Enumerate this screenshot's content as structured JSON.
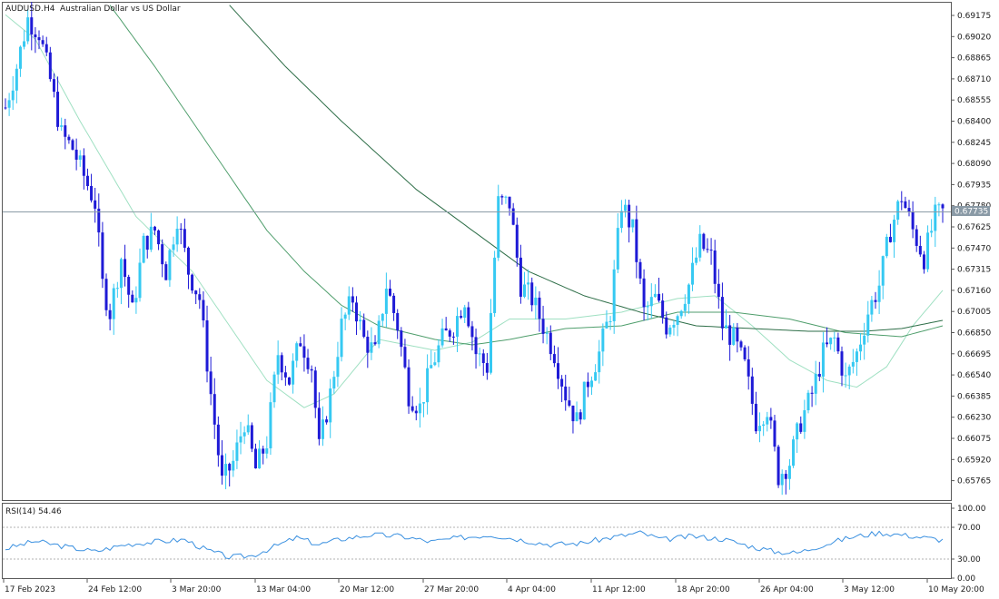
{
  "window": {
    "symbol": "AUDUSD.",
    "timeframe": "H4",
    "description": "Australian Dollar vs US Dollar"
  },
  "colors": {
    "background": "#ffffff",
    "grid_border": "#5a5a5a",
    "bull_candle": "#36c9f2",
    "bear_candle": "#1e1ad6",
    "ma_fast": "#9fe0c2",
    "ma_mid": "#4f9e6c",
    "ma_slow": "#2e6e48",
    "bid_line": "#8a9aa6",
    "price_tag_bg": "#8a9aa6",
    "rsi_line": "#3a90e0",
    "rsi_level_line": "#b0b0b0"
  },
  "price_axis": {
    "labels": [
      "0.69175",
      "0.69020",
      "0.68865",
      "0.68710",
      "0.68555",
      "0.68400",
      "0.68245",
      "0.68090",
      "0.67935",
      "0.67780",
      "0.67625",
      "0.67470",
      "0.67315",
      "0.67160",
      "0.67005",
      "0.66850",
      "0.66695",
      "0.66540",
      "0.66385",
      "0.66230",
      "0.66075",
      "0.65920",
      "0.65765"
    ],
    "current_price": "0.67735"
  },
  "time_axis": {
    "labels": [
      "17 Feb 2023",
      "24 Feb 12:00",
      "3 Mar 20:00",
      "13 Mar 04:00",
      "20 Mar 12:00",
      "27 Mar 20:00",
      "4 Apr 04:00",
      "11 Apr 12:00",
      "18 Apr 20:00",
      "26 Apr 04:00",
      "3 May 12:00",
      "10 May 20:00"
    ]
  },
  "rsi": {
    "label": "RSI(14) 54.46",
    "levels": [
      "100.00",
      "70.00",
      "30.00",
      "0.00"
    ]
  },
  "chart_data": {
    "type": "candlestick",
    "symbol": "AUDUSD.",
    "timeframe": "H4",
    "ylim": [
      0.6567,
      0.6925
    ],
    "current_price": 0.67735,
    "x_range": [
      "17 Feb 2023",
      "10 May 2023"
    ],
    "anchors": [
      [
        0,
        0.685
      ],
      [
        3,
        0.688
      ],
      [
        6,
        0.6915
      ],
      [
        9,
        0.6905
      ],
      [
        12,
        0.687
      ],
      [
        15,
        0.683
      ],
      [
        18,
        0.682
      ],
      [
        21,
        0.68
      ],
      [
        24,
        0.678
      ],
      [
        26,
        0.672
      ],
      [
        28,
        0.67
      ],
      [
        31,
        0.674
      ],
      [
        34,
        0.67
      ],
      [
        37,
        0.675
      ],
      [
        40,
        0.676
      ],
      [
        43,
        0.673
      ],
      [
        46,
        0.677
      ],
      [
        49,
        0.673
      ],
      [
        52,
        0.671
      ],
      [
        55,
        0.664
      ],
      [
        58,
        0.6575
      ],
      [
        61,
        0.659
      ],
      [
        64,
        0.662
      ],
      [
        67,
        0.6585
      ],
      [
        70,
        0.6605
      ],
      [
        73,
        0.667
      ],
      [
        76,
        0.665
      ],
      [
        79,
        0.668
      ],
      [
        82,
        0.666
      ],
      [
        84,
        0.66
      ],
      [
        87,
        0.664
      ],
      [
        90,
        0.669
      ],
      [
        93,
        0.671
      ],
      [
        96,
        0.668
      ],
      [
        99,
        0.667
      ],
      [
        102,
        0.672
      ],
      [
        105,
        0.669
      ],
      [
        108,
        0.664
      ],
      [
        111,
        0.663
      ],
      [
        114,
        0.666
      ],
      [
        117,
        0.668
      ],
      [
        120,
        0.669
      ],
      [
        123,
        0.671
      ],
      [
        126,
        0.667
      ],
      [
        129,
        0.666
      ],
      [
        132,
        0.678
      ],
      [
        135,
        0.678
      ],
      [
        138,
        0.672
      ],
      [
        141,
        0.671
      ],
      [
        144,
        0.669
      ],
      [
        147,
        0.667
      ],
      [
        150,
        0.664
      ],
      [
        153,
        0.662
      ],
      [
        156,
        0.665
      ],
      [
        159,
        0.667
      ],
      [
        162,
        0.67
      ],
      [
        165,
        0.678
      ],
      [
        168,
        0.676
      ],
      [
        171,
        0.67
      ],
      [
        174,
        0.671
      ],
      [
        177,
        0.669
      ],
      [
        180,
        0.67
      ],
      [
        183,
        0.672
      ],
      [
        186,
        0.675
      ],
      [
        189,
        0.674
      ],
      [
        192,
        0.669
      ],
      [
        195,
        0.668
      ],
      [
        198,
        0.666
      ],
      [
        201,
        0.662
      ],
      [
        204,
        0.663
      ],
      [
        207,
        0.658
      ],
      [
        210,
        0.659
      ],
      [
        213,
        0.662
      ],
      [
        216,
        0.664
      ],
      [
        219,
        0.667
      ],
      [
        222,
        0.668
      ],
      [
        225,
        0.665
      ],
      [
        228,
        0.667
      ],
      [
        231,
        0.67
      ],
      [
        234,
        0.672
      ],
      [
        237,
        0.676
      ],
      [
        240,
        0.6785
      ],
      [
        243,
        0.676
      ],
      [
        246,
        0.674
      ],
      [
        249,
        0.677
      ],
      [
        251,
        0.6773
      ]
    ],
    "ma_series": [
      {
        "anchors": [
          [
            0,
            0.6918
          ],
          [
            8,
            0.69
          ],
          [
            20,
            0.684
          ],
          [
            35,
            0.677
          ],
          [
            50,
            0.673
          ],
          [
            60,
            0.669
          ],
          [
            70,
            0.665
          ],
          [
            80,
            0.663
          ],
          [
            88,
            0.664
          ],
          [
            100,
            0.668
          ],
          [
            115,
            0.6672
          ],
          [
            125,
            0.6678
          ],
          [
            135,
            0.6695
          ],
          [
            150,
            0.6695
          ],
          [
            165,
            0.67
          ],
          [
            180,
            0.671
          ],
          [
            190,
            0.6712
          ],
          [
            200,
            0.669
          ],
          [
            210,
            0.6665
          ],
          [
            220,
            0.665
          ],
          [
            228,
            0.6645
          ],
          [
            236,
            0.666
          ],
          [
            243,
            0.669
          ],
          [
            251,
            0.6716
          ]
        ]
      },
      {
        "anchors": [
          [
            28,
            0.6925
          ],
          [
            40,
            0.688
          ],
          [
            55,
            0.682
          ],
          [
            70,
            0.676
          ],
          [
            80,
            0.673
          ],
          [
            90,
            0.6705
          ],
          [
            100,
            0.669
          ],
          [
            115,
            0.668
          ],
          [
            125,
            0.6676
          ],
          [
            135,
            0.668
          ],
          [
            150,
            0.6688
          ],
          [
            165,
            0.669
          ],
          [
            180,
            0.67
          ],
          [
            195,
            0.67
          ],
          [
            210,
            0.6695
          ],
          [
            225,
            0.6685
          ],
          [
            240,
            0.6682
          ],
          [
            251,
            0.669
          ]
        ]
      },
      {
        "anchors": [
          [
            60,
            0.6925
          ],
          [
            75,
            0.688
          ],
          [
            90,
            0.684
          ],
          [
            110,
            0.679
          ],
          [
            125,
            0.676
          ],
          [
            140,
            0.673
          ],
          [
            155,
            0.6712
          ],
          [
            170,
            0.67
          ],
          [
            185,
            0.669
          ],
          [
            200,
            0.6688
          ],
          [
            215,
            0.6686
          ],
          [
            230,
            0.6686
          ],
          [
            240,
            0.6688
          ],
          [
            251,
            0.6694
          ]
        ]
      }
    ],
    "rsi_14": {
      "value": 54.46,
      "levels": [
        70,
        30
      ],
      "range": [
        0,
        100
      ],
      "anchors": [
        [
          0,
          42
        ],
        [
          8,
          53
        ],
        [
          16,
          45
        ],
        [
          24,
          38
        ],
        [
          32,
          48
        ],
        [
          40,
          52
        ],
        [
          48,
          55
        ],
        [
          54,
          40
        ],
        [
          60,
          30
        ],
        [
          66,
          32
        ],
        [
          72,
          45
        ],
        [
          78,
          58
        ],
        [
          84,
          48
        ],
        [
          90,
          56
        ],
        [
          98,
          62
        ],
        [
          106,
          60
        ],
        [
          114,
          52
        ],
        [
          122,
          58
        ],
        [
          130,
          62
        ],
        [
          138,
          55
        ],
        [
          146,
          48
        ],
        [
          154,
          50
        ],
        [
          162,
          58
        ],
        [
          170,
          65
        ],
        [
          176,
          55
        ],
        [
          184,
          60
        ],
        [
          192,
          56
        ],
        [
          200,
          45
        ],
        [
          206,
          38
        ],
        [
          212,
          36
        ],
        [
          218,
          46
        ],
        [
          226,
          58
        ],
        [
          234,
          65
        ],
        [
          240,
          62
        ],
        [
          246,
          58
        ],
        [
          251,
          54.46
        ]
      ]
    }
  }
}
